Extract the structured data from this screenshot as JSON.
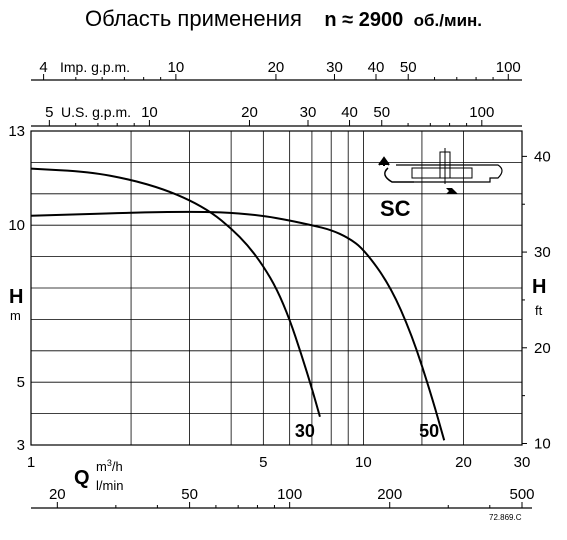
{
  "title": {
    "main": "Область применения",
    "condition": "n ≈ 2900",
    "unit": "об./мин."
  },
  "model_label": "SC",
  "figure_id": "72.869.C",
  "chart_data": {
    "type": "line",
    "x_scale": "log",
    "xlim": [
      1,
      30
    ],
    "ylim": [
      3,
      13
    ],
    "grid": true,
    "axes": {
      "imp_gpm": {
        "label": "Imp. g.p.m.",
        "ticks": [
          {
            "label": "4",
            "v": 4
          },
          {
            "label": "10",
            "v": 10
          },
          {
            "label": "20",
            "v": 20
          },
          {
            "label": "30",
            "v": 30
          },
          {
            "label": "40",
            "v": 40
          },
          {
            "label": "50",
            "v": 50
          },
          {
            "label": "100",
            "v": 100
          }
        ],
        "minor": [
          5,
          6,
          7,
          8,
          9,
          60,
          70,
          80,
          90
        ]
      },
      "us_gpm": {
        "label": "U.S. g.p.m.",
        "ticks": [
          {
            "label": "5",
            "v": 5
          },
          {
            "label": "10",
            "v": 10
          },
          {
            "label": "20",
            "v": 20
          },
          {
            "label": "30",
            "v": 30
          },
          {
            "label": "40",
            "v": 40
          },
          {
            "label": "50",
            "v": 50
          },
          {
            "label": "100",
            "v": 100
          }
        ],
        "minor": [
          6,
          7,
          8,
          9,
          60,
          70,
          80,
          90
        ]
      },
      "q_m3h": {
        "label_q": "Q",
        "label_unit": "m",
        "label_sup": "3",
        "label_unit_tail": "/h",
        "ticks": [
          {
            "label": "1",
            "v": 1
          },
          {
            "label": "5",
            "v": 5
          },
          {
            "label": "10",
            "v": 10
          },
          {
            "label": "20",
            "v": 20
          },
          {
            "label": "30",
            "v": 30
          }
        ],
        "gridlines": [
          1,
          2,
          3,
          4,
          5,
          6,
          7,
          8,
          9,
          10,
          15,
          20,
          30
        ]
      },
      "q_lmin": {
        "label": "l/min",
        "ticks": [
          {
            "label": "20",
            "v": 20
          },
          {
            "label": "50",
            "v": 50
          },
          {
            "label": "100",
            "v": 100
          },
          {
            "label": "200",
            "v": 200
          },
          {
            "label": "500",
            "v": 500
          }
        ],
        "minor": [
          30,
          40,
          60,
          70,
          80,
          90,
          300,
          400
        ]
      },
      "h_m": {
        "label": "H",
        "unit": "m",
        "ticks": [
          {
            "label": "3",
            "v": 3
          },
          {
            "label": "5",
            "v": 5
          },
          {
            "label": "10",
            "v": 10
          },
          {
            "label": "13",
            "v": 13
          }
        ],
        "gridlines": [
          3,
          4,
          5,
          6,
          7,
          8,
          9,
          10,
          11,
          12,
          13
        ]
      },
      "h_ft": {
        "label": "H",
        "unit": "ft",
        "ticks": [
          {
            "label": "10",
            "v": 10
          },
          {
            "label": "20",
            "v": 20
          },
          {
            "label": "30",
            "v": 30
          },
          {
            "label": "40",
            "v": 40
          }
        ],
        "minor": [
          15,
          25,
          35
        ]
      }
    },
    "series": [
      {
        "name": "30",
        "x": [
          1,
          1.5,
          2,
          2.5,
          3,
          3.5,
          4,
          4.5,
          5,
          5.5,
          6,
          6.5,
          7,
          7.4
        ],
        "y": [
          11.8,
          11.7,
          11.45,
          11.15,
          10.8,
          10.4,
          9.9,
          9.35,
          8.7,
          7.95,
          7.0,
          5.9,
          4.8,
          3.9
        ]
      },
      {
        "name": "50",
        "x": [
          1,
          2,
          3,
          4,
          5,
          6,
          7,
          8,
          9,
          10,
          12,
          14,
          16,
          17.5
        ],
        "y": [
          10.3,
          10.4,
          10.43,
          10.4,
          10.3,
          10.15,
          10.0,
          9.85,
          9.6,
          9.25,
          8.1,
          6.5,
          4.6,
          3.15
        ]
      }
    ]
  }
}
